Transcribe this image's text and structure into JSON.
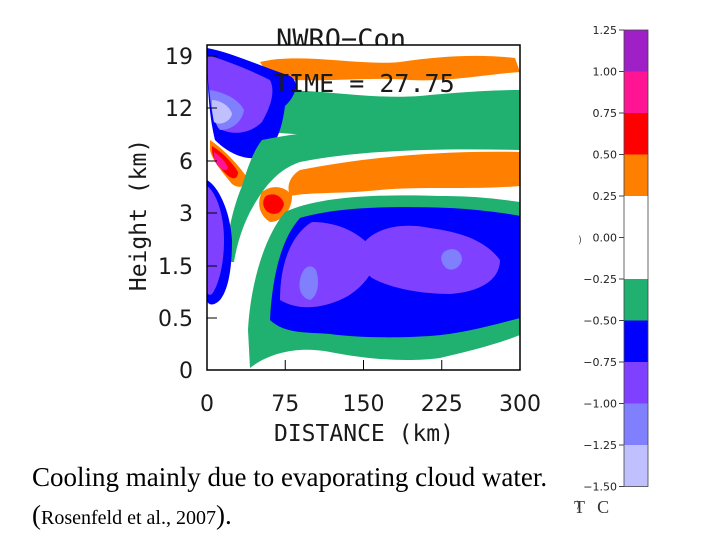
{
  "chart_data": {
    "type": "contour",
    "title": "NWRO−Con",
    "subtitle": "TIME = 27.75",
    "xlabel": "DISTANCE (km)",
    "ylabel": "Height (km)",
    "x_ticks": [
      "0",
      "75",
      "150",
      "225",
      "300"
    ],
    "x_tick_values": [
      0,
      75,
      150,
      225,
      300
    ],
    "y_ticks": [
      "0",
      "0.5",
      "1.5",
      "3",
      "6",
      "12",
      "19"
    ],
    "xlim": [
      0,
      300
    ],
    "colorbar": {
      "unit": "T C",
      "levels": [
        "1.25",
        "1.00",
        "0.75",
        "0.50",
        "0.25",
        "0.00",
        "−0.25",
        "−0.50",
        "−0.75",
        "−1.00",
        "−1.25",
        "−1.50"
      ],
      "colors": [
        "#a020c8",
        "#ff1493",
        "#ff0000",
        "#ff7f00",
        "#ffffff",
        "#ffffff",
        "#20b070",
        "#0000ff",
        "#8040ff",
        "#8080ff",
        "#c0c0ff"
      ]
    },
    "palette": {
      "pos_125": "#a020c8",
      "pos_100": "#ff1493",
      "pos_075": "#ff0000",
      "pos_050": "#ff7f00",
      "neg_025": "#20b070",
      "neg_050": "#0000ff",
      "neg_075": "#8040ff",
      "neg_100": "#8080ff",
      "neg_125": "#c0c0ff"
    }
  },
  "caption": {
    "main": "Cooling mainly due to evaporating cloud water. (",
    "citation": "Rosenfeld et al., 2007",
    "close": ")."
  }
}
